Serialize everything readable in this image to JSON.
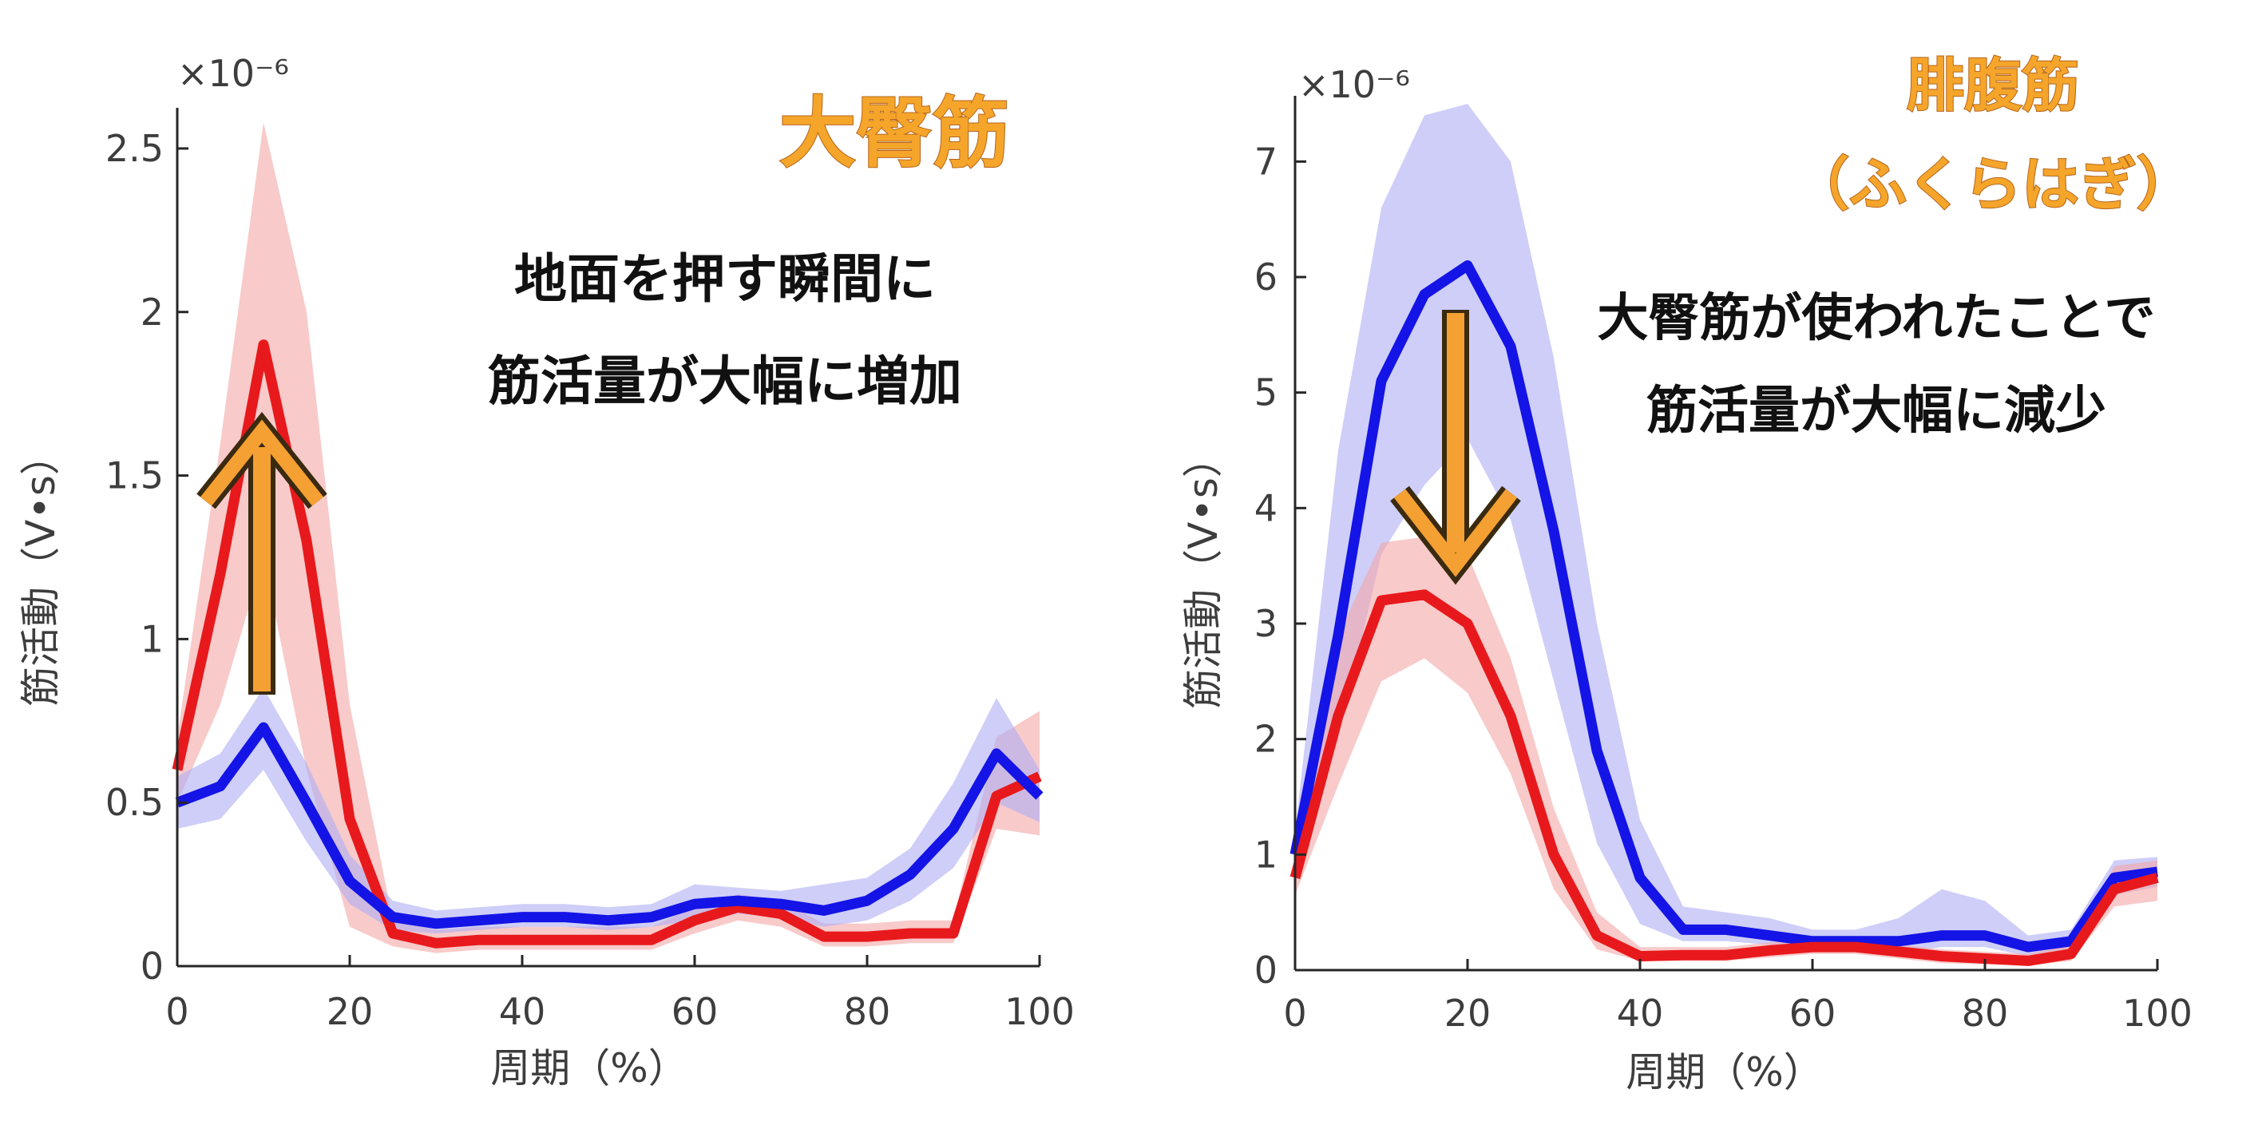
{
  "colors": {
    "red": "#e8191c",
    "blue": "#1414e6",
    "red_band": "#f4a6a6",
    "blue_band": "#aeaef5",
    "title": "#f5a52a",
    "arrow": "#f5a032"
  },
  "chart_data": [
    {
      "type": "line",
      "title": "大臀筋",
      "annotation": [
        "地面を押す瞬間に",
        "筋活量が大幅に増加"
      ],
      "annotation_arrow": "up",
      "xlabel": "周期（%）",
      "ylabel": "筋活動（V•s）",
      "y_exponent": "×10⁻⁶",
      "xlim": [
        0,
        100
      ],
      "ylim": [
        0,
        2.6
      ],
      "xticks": [
        0,
        20,
        40,
        60,
        80,
        100
      ],
      "yticks": [
        0,
        0.5,
        1,
        1.5,
        2,
        2.5
      ],
      "ytick_labels": [
        "0",
        "0.5",
        "1",
        "1.5",
        "2",
        "2.5"
      ],
      "x": [
        0,
        5,
        10,
        15,
        20,
        25,
        30,
        35,
        40,
        45,
        50,
        55,
        60,
        65,
        70,
        75,
        80,
        85,
        90,
        95,
        100
      ],
      "series": [
        {
          "color": "red",
          "values": [
            0.6,
            1.2,
            1.9,
            1.3,
            0.45,
            0.1,
            0.07,
            0.08,
            0.08,
            0.08,
            0.08,
            0.08,
            0.14,
            0.18,
            0.16,
            0.09,
            0.09,
            0.1,
            0.1,
            0.52,
            0.58
          ],
          "upper": [
            0.7,
            1.6,
            2.58,
            2.0,
            0.8,
            0.14,
            0.11,
            0.12,
            0.12,
            0.12,
            0.12,
            0.12,
            0.18,
            0.22,
            0.2,
            0.13,
            0.13,
            0.14,
            0.14,
            0.7,
            0.78
          ],
          "lower": [
            0.5,
            0.8,
            1.25,
            0.6,
            0.12,
            0.06,
            0.04,
            0.05,
            0.05,
            0.05,
            0.05,
            0.05,
            0.1,
            0.14,
            0.12,
            0.06,
            0.06,
            0.07,
            0.07,
            0.42,
            0.4
          ]
        },
        {
          "color": "blue",
          "values": [
            0.5,
            0.55,
            0.73,
            0.5,
            0.26,
            0.15,
            0.13,
            0.14,
            0.15,
            0.15,
            0.14,
            0.15,
            0.19,
            0.2,
            0.19,
            0.17,
            0.2,
            0.28,
            0.42,
            0.65,
            0.52
          ],
          "upper": [
            0.58,
            0.65,
            0.85,
            0.62,
            0.34,
            0.2,
            0.17,
            0.18,
            0.19,
            0.19,
            0.18,
            0.19,
            0.25,
            0.24,
            0.23,
            0.25,
            0.27,
            0.36,
            0.56,
            0.82,
            0.6
          ],
          "lower": [
            0.42,
            0.45,
            0.6,
            0.38,
            0.19,
            0.11,
            0.1,
            0.11,
            0.12,
            0.12,
            0.11,
            0.12,
            0.14,
            0.16,
            0.15,
            0.12,
            0.14,
            0.2,
            0.3,
            0.5,
            0.44
          ]
        }
      ]
    },
    {
      "type": "line",
      "title": [
        "腓腹筋",
        "（ふくらはぎ）"
      ],
      "annotation": [
        "大臀筋が使われたことで",
        "筋活量が大幅に減少"
      ],
      "annotation_arrow": "down",
      "xlabel": "周期（%）",
      "ylabel": "筋活動（V•s）",
      "y_exponent": "×10⁻⁶",
      "xlim": [
        0,
        100
      ],
      "ylim": [
        0,
        7.5
      ],
      "xticks": [
        0,
        20,
        40,
        60,
        80,
        100
      ],
      "yticks": [
        0,
        1,
        2,
        3,
        4,
        5,
        6,
        7
      ],
      "ytick_labels": [
        "0",
        "1",
        "2",
        "3",
        "4",
        "5",
        "6",
        "7"
      ],
      "x": [
        0,
        5,
        10,
        15,
        20,
        25,
        30,
        35,
        40,
        45,
        50,
        55,
        60,
        65,
        70,
        75,
        80,
        85,
        90,
        95,
        100
      ],
      "series": [
        {
          "color": "blue",
          "values": [
            1.0,
            2.9,
            5.1,
            5.85,
            6.1,
            5.4,
            3.8,
            1.9,
            0.8,
            0.35,
            0.35,
            0.3,
            0.25,
            0.25,
            0.25,
            0.3,
            0.3,
            0.2,
            0.25,
            0.8,
            0.85
          ],
          "upper": [
            1.2,
            4.5,
            6.6,
            7.4,
            7.5,
            7.0,
            5.3,
            3.0,
            1.3,
            0.55,
            0.5,
            0.45,
            0.35,
            0.35,
            0.45,
            0.7,
            0.6,
            0.3,
            0.35,
            0.95,
            0.98
          ],
          "lower": [
            0.85,
            2.0,
            3.6,
            4.2,
            4.6,
            3.9,
            2.5,
            1.1,
            0.4,
            0.25,
            0.25,
            0.22,
            0.18,
            0.18,
            0.15,
            0.2,
            0.2,
            0.12,
            0.15,
            0.65,
            0.72
          ]
        },
        {
          "color": "red",
          "values": [
            0.8,
            2.2,
            3.2,
            3.25,
            3.0,
            2.2,
            1.0,
            0.3,
            0.12,
            0.13,
            0.13,
            0.17,
            0.2,
            0.2,
            0.16,
            0.12,
            0.1,
            0.08,
            0.14,
            0.7,
            0.8
          ],
          "upper": [
            0.95,
            2.9,
            3.7,
            3.75,
            3.6,
            2.7,
            1.4,
            0.5,
            0.2,
            0.2,
            0.2,
            0.24,
            0.26,
            0.26,
            0.22,
            0.18,
            0.16,
            0.14,
            0.22,
            0.9,
            0.95
          ],
          "lower": [
            0.65,
            1.6,
            2.5,
            2.7,
            2.4,
            1.7,
            0.7,
            0.18,
            0.08,
            0.08,
            0.08,
            0.11,
            0.14,
            0.14,
            0.1,
            0.06,
            0.05,
            0.04,
            0.08,
            0.55,
            0.6
          ]
        }
      ]
    }
  ]
}
